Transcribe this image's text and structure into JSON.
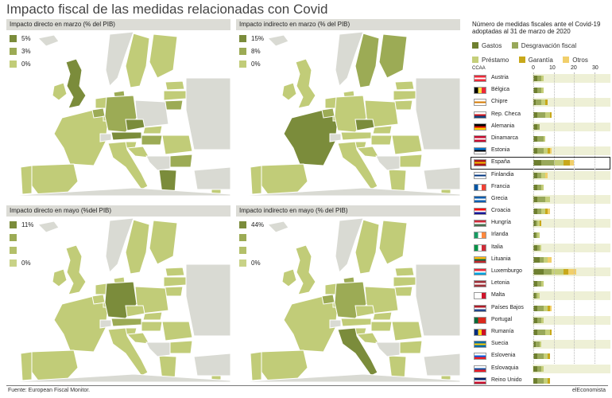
{
  "title": "Impacto fiscal de las medidas relacionadas con Covid",
  "colors": {
    "dark": "#7b8c3b",
    "mid": "#9cab55",
    "light": "#c1cc78",
    "pale": "#d7ddaa",
    "sea": "#ffffff",
    "land_other": "#d9dad3"
  },
  "maps": [
    {
      "title": "Impacto directo en marzo (% del PIB)",
      "legend": [
        "5%",
        "3%",
        "0%"
      ]
    },
    {
      "title": "Impacto indirecto en marzo (% del PIB)",
      "legend": [
        "15%",
        "8%",
        "0%"
      ]
    },
    {
      "title": "Impacto directo en mayo (%del PIB)",
      "legend": [
        "11%",
        "",
        "",
        "0%"
      ]
    },
    {
      "title": "Impacto indirecto en mayo (% del  PIB)",
      "legend": [
        "44%",
        "",
        "",
        "0%"
      ]
    }
  ],
  "chart": {
    "title": "Número de medidas fiscales ante el Covid-19 adoptadas al 31 de marzo de 2020",
    "legend": [
      {
        "name": "Gastos",
        "color": "#6e7f2f"
      },
      {
        "name": "Desgravación fiscal",
        "color": "#98a85a"
      },
      {
        "name": "Préstamo",
        "color": "#c5cf7a"
      },
      {
        "name": "Garantía",
        "color": "#c8a81a"
      },
      {
        "name": "Otros",
        "color": "#f1cf6b"
      }
    ],
    "column_header": "CCAA",
    "ticks": [
      "0",
      "10",
      "20",
      "30"
    ]
  },
  "chart_data": {
    "type": "bar",
    "title": "Número de medidas fiscales ante el Covid-19 adoptadas al 31 de marzo de 2020",
    "xlim": [
      0,
      30
    ],
    "categories": [
      "Austria",
      "Bélgica",
      "Chipre",
      "Rep. Checa",
      "Alemania",
      "Dinamarca",
      "Estonia",
      "España",
      "Finlandia",
      "Francia",
      "Grecia",
      "Croacia",
      "Hungría",
      "Irlanda",
      "Italia",
      "Lituania",
      "Luxemburgo",
      "Letonia",
      "Malta",
      "Países Bajos",
      "Portugal",
      "Rumanía",
      "Suecia",
      "Eslovenia",
      "Eslovaquia",
      "Reino Unido"
    ],
    "series": [
      {
        "name": "Gastos",
        "values": [
          2,
          2,
          1,
          2,
          2,
          2,
          2,
          4,
          2,
          2,
          2,
          2,
          1,
          1,
          2,
          3,
          5,
          2,
          1,
          2,
          2,
          2,
          1,
          2,
          2,
          2
        ]
      },
      {
        "name": "Desgravación fiscal",
        "values": [
          2,
          2,
          3,
          4,
          1,
          3,
          3,
          6,
          2,
          2,
          4,
          2,
          1,
          1,
          1,
          2,
          4,
          2,
          1,
          3,
          2,
          4,
          2,
          3,
          2,
          3
        ]
      },
      {
        "name": "Préstamo",
        "values": [
          1,
          1,
          2,
          2,
          0,
          1,
          2,
          5,
          2,
          1,
          2,
          2,
          1,
          1,
          1,
          2,
          6,
          1,
          1,
          2,
          1,
          2,
          1,
          2,
          1,
          2
        ]
      },
      {
        "name": "Garantía",
        "values": [
          0,
          0,
          1,
          1,
          0,
          0,
          1,
          3,
          0,
          0,
          0,
          1,
          1,
          0,
          0,
          0,
          2,
          0,
          0,
          1,
          0,
          1,
          0,
          1,
          0,
          1
        ]
      },
      {
        "name": "Otros",
        "values": [
          0,
          0,
          0,
          0,
          0,
          0,
          1,
          2,
          1,
          0,
          0,
          1,
          0,
          0,
          0,
          2,
          4,
          0,
          0,
          1,
          0,
          0,
          0,
          0,
          0,
          0
        ]
      }
    ]
  },
  "footer": {
    "source": "Fuente: European Fiscal Monitor.",
    "brand": "elEconomista"
  }
}
